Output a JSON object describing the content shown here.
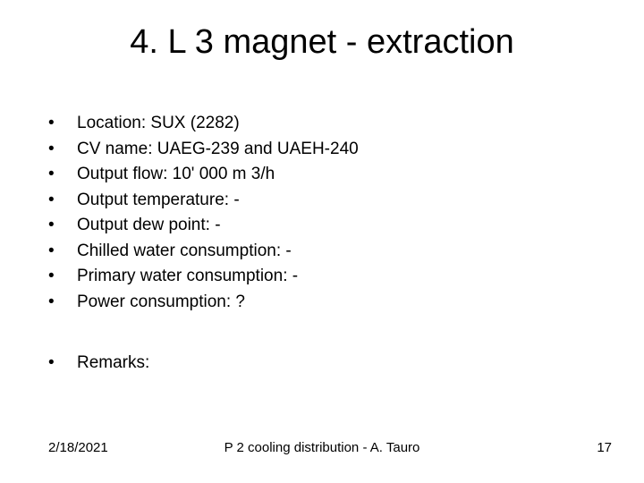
{
  "title": "4. L 3 magnet - extraction",
  "bullets": [
    "Location: SUX (2282)",
    "CV name: UAEG-239 and UAEH-240",
    "Output flow: 10' 000 m 3/h",
    "Output temperature: -",
    "Output dew point: -",
    "Chilled water consumption: -",
    "Primary water consumption: -",
    "Power consumption: ?"
  ],
  "remarks_label": "Remarks:",
  "footer": {
    "date": "2/18/2021",
    "center": "P 2 cooling distribution - A. Tauro",
    "page": "17"
  },
  "style": {
    "background_color": "#ffffff",
    "text_color": "#000000",
    "title_fontsize": 38,
    "body_fontsize": 19,
    "footer_fontsize": 15,
    "bullet_char": "•"
  }
}
